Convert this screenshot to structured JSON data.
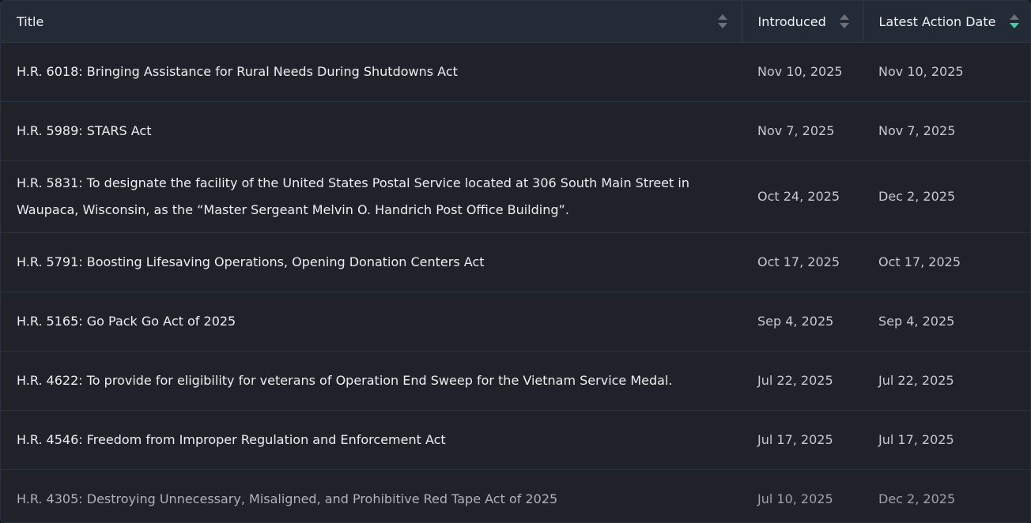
{
  "columns": [
    {
      "label": "Title",
      "sort": "none"
    },
    {
      "label": "Introduced",
      "sort": "none"
    },
    {
      "label": "Latest Action Date",
      "sort": "descending"
    }
  ],
  "accent_color": "#3ecfa8",
  "rows": [
    {
      "title": "H.R. 6018: Bringing Assistance for Rural Needs During Shutdowns Act",
      "introduced": "Nov 10, 2025",
      "latest": "Nov 10, 2025"
    },
    {
      "title": "H.R. 5989: STARS Act",
      "introduced": "Nov 7, 2025",
      "latest": "Nov 7, 2025"
    },
    {
      "title": "H.R. 5831: To designate the facility of the United States Postal Service located at 306 South Main Street in Waupaca, Wisconsin, as the “Master Sergeant Melvin O. Handrich Post Office Building”.",
      "introduced": "Oct 24, 2025",
      "latest": "Dec 2, 2025"
    },
    {
      "title": "H.R. 5791: Boosting Lifesaving Operations, Opening Donation Centers Act",
      "introduced": "Oct 17, 2025",
      "latest": "Oct 17, 2025"
    },
    {
      "title": "H.R. 5165: Go Pack Go Act of 2025",
      "introduced": "Sep 4, 2025",
      "latest": "Sep 4, 2025"
    },
    {
      "title": "H.R. 4622: To provide for eligibility for veterans of Operation End Sweep for the Vietnam Service Medal.",
      "introduced": "Jul 22, 2025",
      "latest": "Jul 22, 2025"
    },
    {
      "title": "H.R. 4546: Freedom from Improper Regulation and Enforcement Act",
      "introduced": "Jul 17, 2025",
      "latest": "Jul 17, 2025"
    },
    {
      "title": "H.R. 4305: Destroying Unnecessary, Misaligned, and Prohibitive Red Tape Act of 2025",
      "introduced": "Jul 10, 2025",
      "latest": "Dec 2, 2025"
    }
  ]
}
